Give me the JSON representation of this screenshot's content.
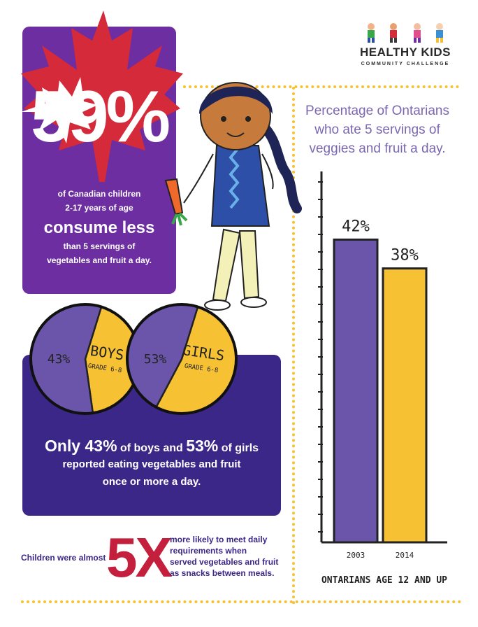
{
  "logo": {
    "title": "HEALTHY KIDS",
    "subtitle": "COMMUNITY CHALLENGE"
  },
  "stat_card": {
    "percent": "59%",
    "line1": "of Canadian children",
    "line2": "2-17 years of age",
    "line3": "consume less",
    "line4": "than 5 servings of",
    "line5": "vegetables and fruit a day."
  },
  "bg_card": {
    "lead": "Only ",
    "boys_pct": "43%",
    "mid": " of boys and ",
    "girls_pct": "53%",
    "tail": " of girls",
    "line2": "reported eating vegetables and fruit",
    "line3": "once or more a day."
  },
  "fivex": {
    "left": "Children were almost",
    "number": "5X",
    "r1": "more likely to meet daily",
    "r2": "requirements when",
    "r3": "served vegetables and fruit",
    "r4": "as snacks between meals."
  },
  "colors": {
    "purple_card": "#6d2ea1",
    "maple_red": "#d42a3a",
    "blue_card": "#3b2788",
    "bar_purple": "#6a55aa",
    "bar_yellow": "#f6c133",
    "title_purple": "#7b68b0",
    "accent_red": "#c4203d"
  },
  "chart_data": [
    {
      "type": "bar",
      "title": "Percentage of Ontarians who ate 5 servings of veggies and fruit a day.",
      "title_lines": [
        "Percentage of Ontarians",
        "who ate 5 servings of",
        "veggies and fruit a day."
      ],
      "categories": [
        "2003",
        "2014"
      ],
      "values": [
        42,
        38
      ],
      "value_labels": [
        "42%",
        "38%"
      ],
      "xlabel": "ONTARIANS AGE 12 AND UP",
      "ylabel": "",
      "ylim": [
        0,
        50
      ],
      "colors": [
        "#6a55aa",
        "#f6c133"
      ],
      "grid": false
    },
    {
      "type": "pie",
      "label": "BOYS",
      "sublabel": "GRADE 6-8",
      "value_label": "43%",
      "slices": [
        {
          "value": 43,
          "color": "#f6c133"
        },
        {
          "value": 57,
          "color": "#6a55aa"
        }
      ]
    },
    {
      "type": "pie",
      "label": "GIRLS",
      "sublabel": "GRADE 6-8",
      "value_label": "53%",
      "slices": [
        {
          "value": 53,
          "color": "#f6c133"
        },
        {
          "value": 47,
          "color": "#6a55aa"
        }
      ]
    }
  ]
}
